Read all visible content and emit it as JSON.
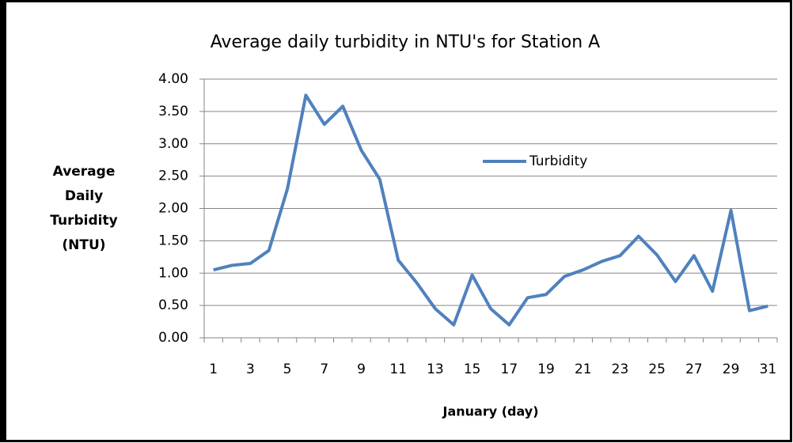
{
  "chart_data": {
    "type": "line",
    "title": "Average daily turbidity in NTU's for Station A",
    "x_label": "January (day)",
    "y_label": "Average Daily Turbidity (NTU)",
    "categories": [
      1,
      null,
      3,
      null,
      5,
      null,
      7,
      null,
      9,
      null,
      11,
      null,
      13,
      null,
      15,
      null,
      17,
      null,
      19,
      null,
      21,
      null,
      23,
      null,
      25,
      null,
      27,
      null,
      29,
      null,
      31
    ],
    "series": [
      {
        "name": "Turbidity",
        "color": "#4f81bd",
        "values": [
          1.05,
          1.12,
          1.15,
          1.35,
          2.3,
          3.75,
          3.3,
          3.58,
          2.9,
          2.45,
          1.2,
          0.85,
          0.45,
          0.2,
          0.97,
          0.45,
          0.2,
          0.62,
          0.67,
          0.95,
          1.05,
          1.18,
          1.27,
          1.57,
          1.28,
          0.87,
          1.27,
          0.72,
          1.97,
          0.42,
          0.49
        ]
      }
    ],
    "ylim": [
      0,
      4
    ],
    "yticks": [
      {
        "value": 0,
        "label": "0.00"
      },
      {
        "value": 0.5,
        "label": "0.50"
      },
      {
        "value": 1,
        "label": "1.00"
      },
      {
        "value": 1.5,
        "label": "1.50"
      },
      {
        "value": 2,
        "label": "2.00"
      },
      {
        "value": 2.5,
        "label": "2.50"
      },
      {
        "value": 3,
        "label": "3.00"
      },
      {
        "value": 3.5,
        "label": "3.50"
      },
      {
        "value": 4,
        "label": "4.00"
      }
    ],
    "grid": true,
    "legend": "inside"
  }
}
